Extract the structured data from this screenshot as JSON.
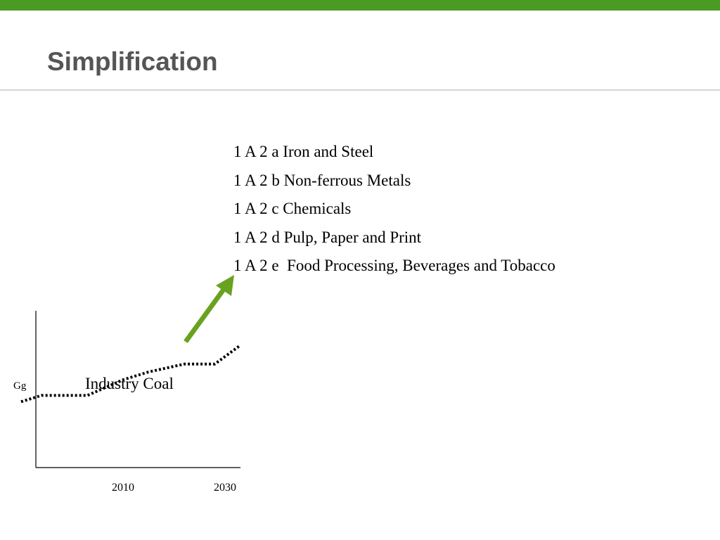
{
  "slide": {
    "title": "Simplification",
    "colors": {
      "accent": "#4a9b23",
      "title": "#555555",
      "arrow": "#6aa220"
    }
  },
  "categories": [
    "1 A 2 a Iron and Steel",
    "1 A 2 b Non-ferrous Metals",
    "1 A 2 c Chemicals",
    "1 A 2 d Pulp, Paper and Print",
    "1 A 2 e  Food Processing, Beverages and Tobacco"
  ],
  "chart_data": {
    "type": "line",
    "title": "",
    "annotation": "Industry Coal",
    "ylabel": "Gg",
    "xlabel": "",
    "x_ticks": [
      "2010",
      "2030"
    ],
    "line_style": "dotted",
    "y_axis_values": "none",
    "series": [
      {
        "points": [
          {
            "x": 1990,
            "y": 0.42
          },
          {
            "x": 1994,
            "y": 0.46
          },
          {
            "x": 2003,
            "y": 0.46
          },
          {
            "x": 2010,
            "y": 0.56
          },
          {
            "x": 2015,
            "y": 0.61
          },
          {
            "x": 2022,
            "y": 0.66
          },
          {
            "x": 2028,
            "y": 0.66
          },
          {
            "x": 2033,
            "y": 0.78
          }
        ]
      }
    ]
  }
}
